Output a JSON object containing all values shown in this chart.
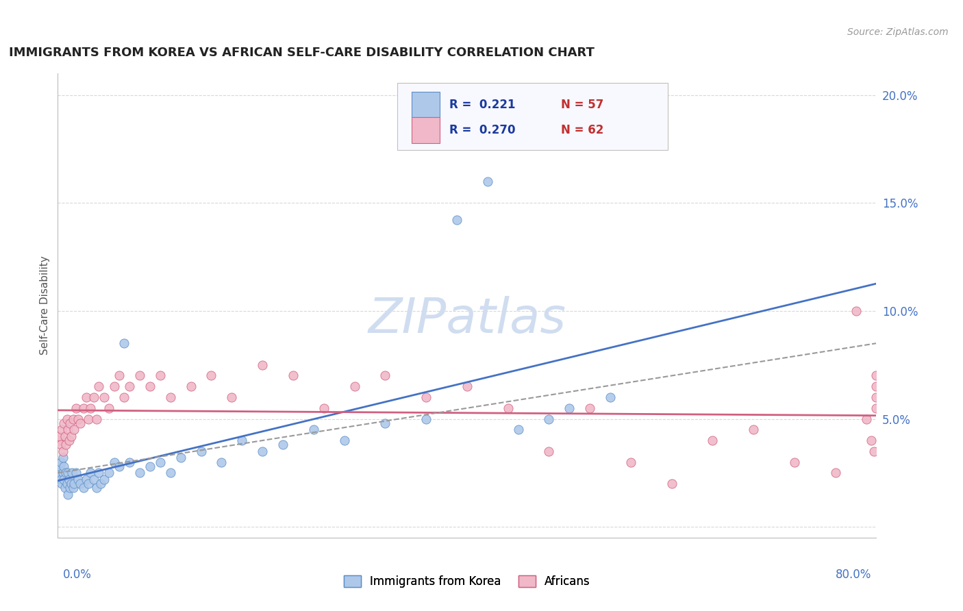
{
  "title": "IMMIGRANTS FROM KOREA VS AFRICAN SELF-CARE DISABILITY CORRELATION CHART",
  "source": "Source: ZipAtlas.com",
  "ylabel": "Self-Care Disability",
  "xlim": [
    0.0,
    0.8
  ],
  "ylim": [
    -0.005,
    0.21
  ],
  "ytick_vals": [
    0.0,
    0.05,
    0.1,
    0.15,
    0.2
  ],
  "ytick_labels": [
    "",
    "5.0%",
    "10.0%",
    "15.0%",
    "20.0%"
  ],
  "korea_R": 0.221,
  "korea_N": 57,
  "africa_R": 0.27,
  "africa_N": 62,
  "korea_dot_color": "#aec8ea",
  "korea_edge_color": "#5b8ec4",
  "africa_dot_color": "#f0b8c8",
  "africa_edge_color": "#d06080",
  "korea_trend_color": "#4472c4",
  "africa_trend_color": "#d06080",
  "korea_trend_style": "-",
  "africa_trend_style": "-",
  "background_color": "#ffffff",
  "grid_color": "#d8d8d8",
  "watermark_text": "ZIPatlas",
  "watermark_color": "#d0ddf0",
  "legend_box_color": "#f0f0ff",
  "legend_border_color": "#c8c8c8",
  "korea_x": [
    0.001,
    0.002,
    0.003,
    0.003,
    0.004,
    0.005,
    0.005,
    0.006,
    0.006,
    0.007,
    0.008,
    0.009,
    0.01,
    0.01,
    0.011,
    0.012,
    0.013,
    0.014,
    0.015,
    0.016,
    0.018,
    0.02,
    0.022,
    0.025,
    0.028,
    0.03,
    0.032,
    0.035,
    0.038,
    0.04,
    0.042,
    0.045,
    0.05,
    0.055,
    0.06,
    0.065,
    0.07,
    0.08,
    0.09,
    0.1,
    0.11,
    0.12,
    0.14,
    0.16,
    0.18,
    0.2,
    0.22,
    0.25,
    0.28,
    0.32,
    0.36,
    0.39,
    0.42,
    0.45,
    0.48,
    0.5,
    0.54
  ],
  "korea_y": [
    0.025,
    0.028,
    0.022,
    0.03,
    0.02,
    0.025,
    0.032,
    0.022,
    0.028,
    0.018,
    0.025,
    0.02,
    0.015,
    0.025,
    0.022,
    0.018,
    0.02,
    0.025,
    0.018,
    0.02,
    0.025,
    0.022,
    0.02,
    0.018,
    0.022,
    0.02,
    0.025,
    0.022,
    0.018,
    0.025,
    0.02,
    0.022,
    0.025,
    0.03,
    0.028,
    0.085,
    0.03,
    0.025,
    0.028,
    0.03,
    0.025,
    0.032,
    0.035,
    0.03,
    0.04,
    0.035,
    0.038,
    0.045,
    0.04,
    0.048,
    0.05,
    0.142,
    0.16,
    0.045,
    0.05,
    0.055,
    0.06
  ],
  "africa_x": [
    0.001,
    0.002,
    0.003,
    0.004,
    0.005,
    0.006,
    0.007,
    0.008,
    0.009,
    0.01,
    0.011,
    0.012,
    0.013,
    0.015,
    0.016,
    0.018,
    0.02,
    0.022,
    0.025,
    0.028,
    0.03,
    0.032,
    0.035,
    0.038,
    0.04,
    0.045,
    0.05,
    0.055,
    0.06,
    0.065,
    0.07,
    0.08,
    0.09,
    0.1,
    0.11,
    0.13,
    0.15,
    0.17,
    0.2,
    0.23,
    0.26,
    0.29,
    0.32,
    0.36,
    0.4,
    0.44,
    0.48,
    0.52,
    0.56,
    0.6,
    0.64,
    0.68,
    0.72,
    0.76,
    0.78,
    0.79,
    0.795,
    0.798,
    0.8,
    0.8,
    0.8,
    0.8
  ],
  "africa_y": [
    0.04,
    0.042,
    0.038,
    0.045,
    0.035,
    0.048,
    0.042,
    0.038,
    0.05,
    0.045,
    0.04,
    0.048,
    0.042,
    0.05,
    0.045,
    0.055,
    0.05,
    0.048,
    0.055,
    0.06,
    0.05,
    0.055,
    0.06,
    0.05,
    0.065,
    0.06,
    0.055,
    0.065,
    0.07,
    0.06,
    0.065,
    0.07,
    0.065,
    0.07,
    0.06,
    0.065,
    0.07,
    0.06,
    0.075,
    0.07,
    0.055,
    0.065,
    0.07,
    0.06,
    0.065,
    0.055,
    0.035,
    0.055,
    0.03,
    0.02,
    0.04,
    0.045,
    0.03,
    0.025,
    0.1,
    0.05,
    0.04,
    0.035,
    0.055,
    0.06,
    0.065,
    0.07
  ]
}
